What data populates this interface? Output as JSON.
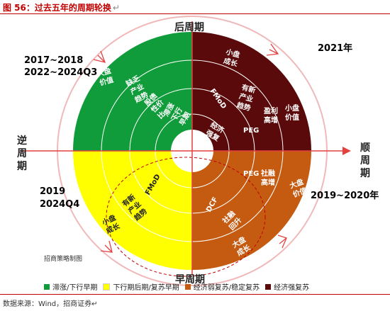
{
  "title": {
    "figure_label": "图 56：",
    "text": "过去五年的周期轮换",
    "return_mark": "↵"
  },
  "axes": {
    "top": "后周期",
    "bottom": "早周期",
    "left": [
      "逆",
      "周",
      "期"
    ],
    "right": [
      "顺",
      "周",
      "期"
    ]
  },
  "periods": {
    "top_left_1": "2017~2018",
    "top_left_2": "2022~2024Q3",
    "top_right": "2021年",
    "bottom_left_1": "2019",
    "bottom_left_2": "2024Q4",
    "bottom_right": "2019~2020年"
  },
  "colors": {
    "green": "#109c3a",
    "yellow": "#ffff00",
    "brown": "#c55a11",
    "maroon": "#5a0a0a",
    "red": "#e34040"
  },
  "sectors": {
    "green": [
      "大盘价值",
      "缺乏产业趋势",
      "股债性价比",
      "滞涨下行早期"
    ],
    "maroon": [
      "盈利高增",
      "小盘价值",
      "有新产业趋势",
      "小盘成长",
      "PEG",
      "经济强复苏",
      "FMoD"
    ],
    "brown": [
      "PEG",
      "社融高增",
      "大盘价值",
      "DCF",
      "社融回升",
      "大盘成长"
    ],
    "yellow": [
      "FMoD",
      "有新产业趋势",
      "小盘成长"
    ]
  },
  "note": "招商策略制图",
  "legend": [
    {
      "label": "滞涨/下行早期",
      "color": "#109c3a"
    },
    {
      "label": "下行期后期/复苏早期",
      "color": "#ffff00"
    },
    {
      "label": "经济弱复苏/稳定复苏",
      "color": "#c55a11"
    },
    {
      "label": "经济强复苏",
      "color": "#5a0a0a"
    }
  ],
  "source": "数据来源：Wind，招商证券↵"
}
